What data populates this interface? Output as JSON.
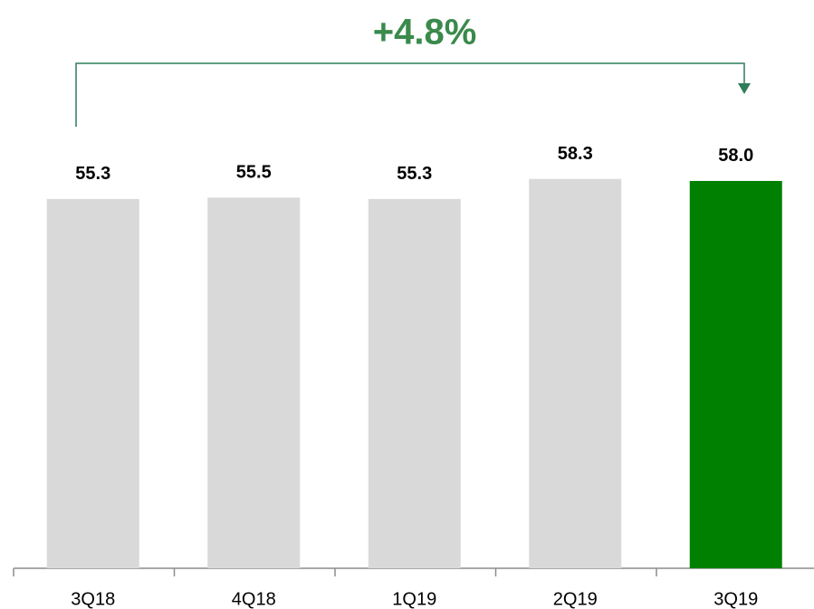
{
  "chart_data": {
    "type": "bar",
    "annotation": "+4.8%",
    "categories": [
      "3Q18",
      "4Q18",
      "1Q19",
      "2Q19",
      "3Q19"
    ],
    "values": [
      55.3,
      55.5,
      55.3,
      58.3,
      58.0
    ],
    "value_labels": [
      "55.3",
      "55.5",
      "55.3",
      "58.3",
      "58.0"
    ],
    "colors": [
      "#d9d9d9",
      "#d9d9d9",
      "#d9d9d9",
      "#d9d9d9",
      "#008000"
    ],
    "annotation_color": "#3a8a4c"
  }
}
